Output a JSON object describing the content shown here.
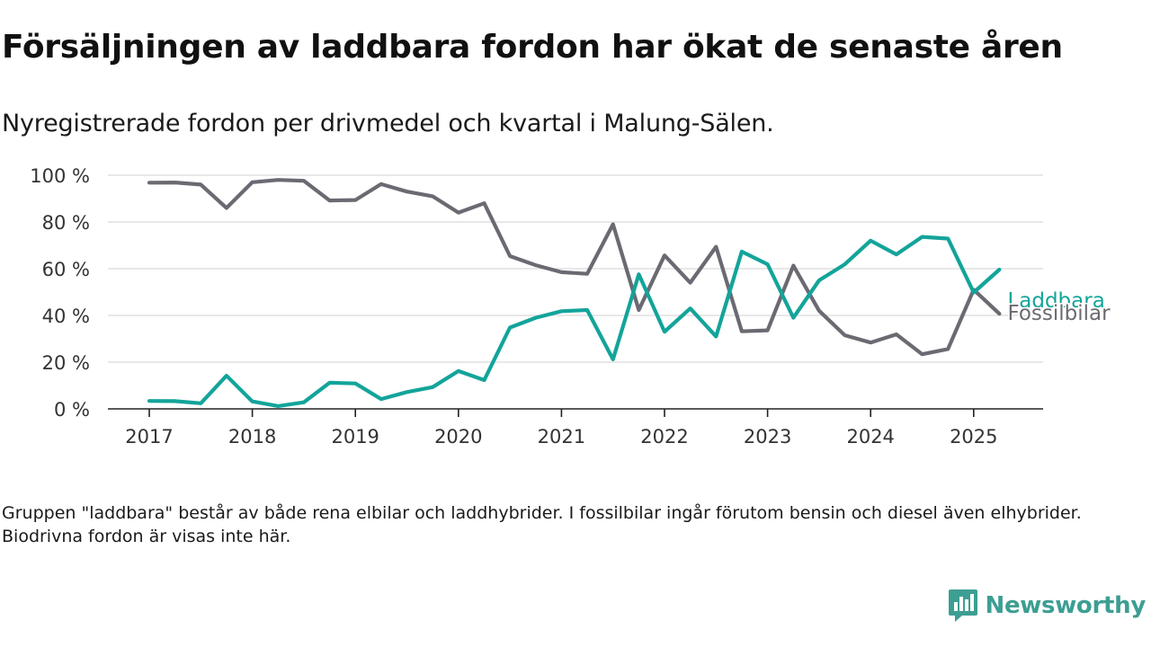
{
  "title": "Försäljningen av laddbara fordon har ökat de senaste åren",
  "subtitle": "Nyregistrerade fordon per drivmedel och kvartal i Malung-Sälen.",
  "note": "Gruppen \"laddbara\" består av både rena elbilar och laddhybrider. I fossilbilar ingår förutom bensin och diesel även elhybrider. Biodrivna fordon är visas inte här.",
  "brand": {
    "name": "Newsworthy",
    "icon": "newsworthy-logo-icon",
    "color": "#3d9e93"
  },
  "chart_data": {
    "type": "line",
    "title": "Försäljningen av laddbara fordon har ökat de senaste åren",
    "subtitle": "Nyregistrerade fordon per drivmedel och kvartal i Malung-Sälen.",
    "xlabel": "",
    "ylabel": "",
    "ylim": [
      0,
      100
    ],
    "y_ticks": [
      0,
      20,
      40,
      60,
      80,
      100
    ],
    "y_tick_labels": [
      "0 %",
      "20 %",
      "40 %",
      "60 %",
      "80 %",
      "100 %"
    ],
    "x_ticks": [
      2017,
      2018,
      2019,
      2020,
      2021,
      2022,
      2023,
      2024,
      2025
    ],
    "x_tick_labels": [
      "2017",
      "2018",
      "2019",
      "2020",
      "2021",
      "2022",
      "2023",
      "2024",
      "2025"
    ],
    "grid": "horizontal",
    "legend": "inline labels at line ends (right)",
    "x": [
      "2017-Q1",
      "2017-Q2",
      "2017-Q3",
      "2017-Q4",
      "2018-Q1",
      "2018-Q2",
      "2018-Q3",
      "2018-Q4",
      "2019-Q1",
      "2019-Q2",
      "2019-Q3",
      "2019-Q4",
      "2020-Q1",
      "2020-Q2",
      "2020-Q3",
      "2020-Q4",
      "2021-Q1",
      "2021-Q2",
      "2021-Q3",
      "2021-Q4",
      "2022-Q1",
      "2022-Q2",
      "2022-Q3",
      "2022-Q4",
      "2023-Q1",
      "2023-Q2",
      "2023-Q3",
      "2023-Q4",
      "2024-Q1",
      "2024-Q2",
      "2024-Q3",
      "2024-Q4",
      "2025-Q1",
      "2025-Q2"
    ],
    "series": [
      {
        "name": "Fossilbilar",
        "color": "#6b6a72",
        "values": [
          96.8,
          96.9,
          96.0,
          86.0,
          97.0,
          98.0,
          97.6,
          89.2,
          89.4,
          96.2,
          93.0,
          91.0,
          84.0,
          88.0,
          65.4,
          61.5,
          58.5,
          57.8,
          79.0,
          42.3,
          65.7,
          54.0,
          69.4,
          33.2,
          33.6,
          61.3,
          42.0,
          31.5,
          28.4,
          31.9,
          23.4,
          25.6,
          51.0,
          40.7
        ]
      },
      {
        "name": "Laddbara",
        "color": "#13a49a",
        "values": [
          3.4,
          3.3,
          2.4,
          14.2,
          3.2,
          1.2,
          2.8,
          11.2,
          10.9,
          4.2,
          7.2,
          9.3,
          16.2,
          12.3,
          34.8,
          39.0,
          41.8,
          42.3,
          21.2,
          57.6,
          33.0,
          43.0,
          31.0,
          67.3,
          61.9,
          39.0,
          55.0,
          61.9,
          72.0,
          66.1,
          73.6,
          72.9,
          49.8,
          59.6
        ]
      }
    ]
  }
}
